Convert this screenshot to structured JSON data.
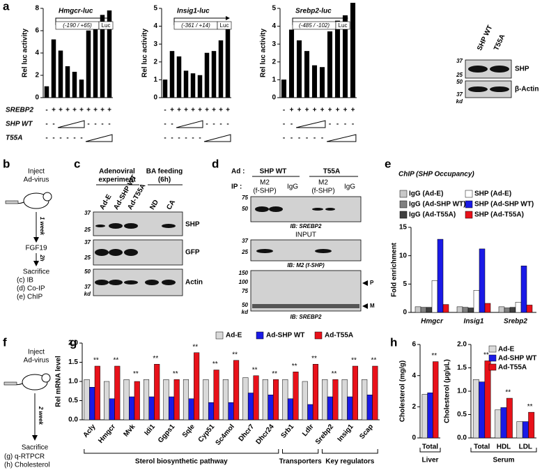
{
  "panel_labels": [
    "a",
    "b",
    "c",
    "d",
    "e",
    "f",
    "g",
    "h"
  ],
  "condition_labels": [
    "SREBP2",
    "SHP WT",
    "T55A"
  ],
  "chart_data": [
    {
      "type": "bar",
      "title": "Hmgcr-luc",
      "subtitle": "(-190 / +65)",
      "reporter": "Luc",
      "ylabel": "Rel luc activity",
      "color": "#000000",
      "values": [
        1,
        5.2,
        4.2,
        2.8,
        2.3,
        1.6,
        6.0,
        6.6,
        7.4,
        7.8
      ],
      "ylim": [
        0,
        8
      ],
      "yticks": [
        0,
        2,
        4,
        6,
        8
      ],
      "condition_signs": [
        [
          "-",
          "+",
          "+",
          "+",
          "+",
          "+",
          "+",
          "+",
          "+",
          "+"
        ],
        [
          "-",
          "-",
          null,
          null,
          null,
          null,
          "-",
          "-",
          "-",
          "-"
        ],
        [
          "-",
          "-",
          "-",
          "-",
          "-",
          "-",
          null,
          null,
          null,
          null
        ]
      ]
    },
    {
      "type": "bar",
      "title": "Insig1-luc",
      "subtitle": "(-361 / +14)",
      "reporter": "Luc",
      "ylabel": "Rel luc activity",
      "color": "#000000",
      "values": [
        1,
        2.6,
        2.3,
        1.5,
        1.35,
        1.25,
        2.5,
        2.6,
        3.2,
        4.1
      ],
      "ylim": [
        0,
        5
      ],
      "yticks": [
        0,
        1,
        2,
        3,
        4,
        5
      ],
      "condition_signs": [
        [
          "-",
          "+",
          "+",
          "+",
          "+",
          "+",
          "+",
          "+",
          "+",
          "+"
        ],
        [
          "-",
          "-",
          null,
          null,
          null,
          null,
          "-",
          "-",
          "-",
          "-"
        ],
        [
          "-",
          "-",
          "-",
          "-",
          "-",
          "-",
          null,
          null,
          null,
          null
        ]
      ]
    },
    {
      "type": "bar",
      "title": "Srebp2-luc",
      "subtitle": "(-485 / -102)",
      "reporter": "Luc",
      "ylabel": "Rel luc activity",
      "color": "#000000",
      "values": [
        1,
        3.8,
        3.2,
        2.6,
        1.8,
        1.7,
        3.7,
        4.3,
        4.6,
        5.3
      ],
      "ylim": [
        0,
        5
      ],
      "yticks": [
        0,
        1,
        2,
        3,
        4,
        5
      ],
      "condition_signs": [
        [
          "-",
          "+",
          "+",
          "+",
          "+",
          "+",
          "+",
          "+",
          "+",
          "+"
        ],
        [
          "-",
          "-",
          null,
          null,
          null,
          null,
          "-",
          "-",
          "-",
          "-"
        ],
        [
          "-",
          "-",
          "-",
          "-",
          "-",
          "-",
          null,
          null,
          null,
          null
        ]
      ]
    },
    {
      "type": "bar",
      "title": "ChIP (SHP Occupancy)",
      "ylabel": "Fold enrichment",
      "categories": [
        "Hmgcr",
        "Insig1",
        "Srebp2"
      ],
      "series": [
        {
          "name": "IgG (Ad-E)",
          "color": "#c8c8c8",
          "values": [
            1.0,
            1.0,
            1.0
          ]
        },
        {
          "name": "IgG (Ad-SHP WT)",
          "color": "#808080",
          "values": [
            0.9,
            0.9,
            0.8
          ]
        },
        {
          "name": "IgG (Ad-T55A)",
          "color": "#404040",
          "values": [
            0.9,
            0.8,
            0.9
          ]
        },
        {
          "name": "SHP (Ad-E)",
          "color": "#ffffff",
          "values": [
            5.6,
            3.9,
            1.8
          ]
        },
        {
          "name": "SHP (Ad-SHP WT)",
          "color": "#1a1ae6",
          "values": [
            12.9,
            11.2,
            8.2
          ]
        },
        {
          "name": "SHP (Ad-T55A)",
          "color": "#e8111a",
          "values": [
            1.4,
            1.6,
            1.3
          ]
        }
      ],
      "ylim": [
        0,
        15
      ],
      "yticks": [
        0,
        5,
        10,
        15
      ]
    },
    {
      "type": "bar",
      "ylabel": "Rel mRNA level",
      "categories": [
        "Acly",
        "Hmgcr",
        "Mvk",
        "Idi1",
        "Ggps1",
        "Sqle",
        "Cyp51",
        "Sc4mol",
        "Dhcr7",
        "Dhcr24",
        "Srb1",
        "Ldlr",
        "Srebp2",
        "Insig1",
        "Scap"
      ],
      "series": [
        {
          "name": "Ad-E",
          "color": "#d9d9d9",
          "values": [
            1.05,
            1.0,
            1.05,
            1.05,
            1.05,
            1.05,
            1.05,
            1.05,
            1.1,
            1.05,
            1.05,
            1.0,
            1.05,
            1.05,
            1.05
          ]
        },
        {
          "name": "Ad-SHP WT",
          "color": "#1a1ae6",
          "values": [
            0.85,
            0.55,
            0.6,
            0.6,
            0.6,
            0.55,
            0.45,
            0.45,
            0.7,
            0.65,
            0.55,
            0.4,
            0.6,
            0.6,
            0.65
          ]
        },
        {
          "name": "Ad-T55A",
          "color": "#e8111a",
          "values": [
            1.4,
            1.4,
            1.0,
            1.45,
            1.05,
            1.75,
            1.3,
            1.55,
            1.15,
            1.05,
            1.25,
            1.45,
            1.05,
            1.4,
            1.4
          ]
        }
      ],
      "sig_labels": [
        "**",
        "**",
        "**",
        "**",
        "**",
        "**",
        "**",
        "**",
        "**",
        "**",
        "**",
        "**",
        "**",
        "**",
        "**"
      ],
      "group_labels": [
        "Sterol biosynthetic pathway",
        "Transporters",
        "Key regulators"
      ],
      "ylim": [
        0,
        2
      ],
      "yticks": [
        {
          "value": 0,
          "label": "0.0"
        },
        {
          "value": 0.5,
          "label": "0.5"
        },
        {
          "value": 1,
          "label": "1.0"
        },
        {
          "value": 1.5,
          "label": "1.5"
        },
        {
          "value": 2,
          "label": "2.0"
        }
      ]
    },
    {
      "type": "bar",
      "ylabel": "Cholesterol (mg/g)",
      "categories": [
        "Total"
      ],
      "group_label": "Liver",
      "series": [
        {
          "color": "#d9d9d9",
          "values": [
            2.8
          ]
        },
        {
          "color": "#1a1ae6",
          "values": [
            2.9
          ]
        },
        {
          "color": "#e8111a",
          "values": [
            4.9
          ]
        }
      ],
      "sig_labels": [
        "**"
      ],
      "ylim": [
        0,
        6
      ],
      "yticks": [
        0,
        2,
        4,
        6
      ]
    },
    {
      "type": "bar",
      "ylabel": "Cholesterol (μg/μL)",
      "categories": [
        "Total",
        "HDL",
        "LDL"
      ],
      "group_label": "Serum",
      "series": [
        {
          "name": "Ad-E",
          "color": "#d9d9d9",
          "values": [
            1.25,
            0.6,
            0.35
          ]
        },
        {
          "name": "Ad-SHP WT",
          "color": "#1a1ae6",
          "values": [
            1.2,
            0.65,
            0.35
          ]
        },
        {
          "name": "Ad-T55A",
          "color": "#e8111a",
          "values": [
            1.65,
            0.85,
            0.55
          ]
        }
      ],
      "sig_labels": [
        "**",
        "**",
        "**"
      ],
      "ylim": [
        0,
        2
      ],
      "yticks": [
        {
          "value": 0,
          "label": "0.0"
        },
        {
          "value": 0.5,
          "label": "0.5"
        },
        {
          "value": 1,
          "label": "1.0"
        },
        {
          "value": 1.5,
          "label": "1.5"
        },
        {
          "value": 2,
          "label": "2.0"
        }
      ]
    }
  ],
  "blot_a": {
    "lanes": [
      "SHP WT",
      "T55A"
    ],
    "bands": [
      "SHP",
      "β-Actin"
    ],
    "markers": [
      "37",
      "25",
      "50",
      "37"
    ],
    "unit": "kd"
  },
  "panel_b": {
    "step1": [
      "Inject",
      "Ad-virus"
    ],
    "interval1": "1 week",
    "treatment": "FGF19",
    "interval2": "2h",
    "end": "Sacrifice",
    "assays": [
      "(c) IB",
      "(d) Co-IP",
      "(e) ChIP"
    ]
  },
  "panel_c": {
    "header1": [
      "Adenoviral",
      "experiment"
    ],
    "header2": [
      "BA feeding",
      "(6h)"
    ],
    "lanes": [
      "Ad-E",
      "Ad-SHP WT",
      "Ad-T55A",
      "ND",
      "CA"
    ],
    "bands": [
      "SHP",
      "GFP",
      "Actin"
    ],
    "markers": [
      "37",
      "25",
      "37",
      "25",
      "50",
      "37"
    ],
    "unit": "kd"
  },
  "panel_d": {
    "ad_label": "Ad :",
    "groups": [
      "SHP WT",
      "T55A"
    ],
    "ip_label": "IP :",
    "ip": [
      [
        "M2",
        "(f-SHP)"
      ],
      "IgG",
      [
        "M2",
        "(f-SHP)"
      ],
      "IgG"
    ],
    "blot1_markers": [
      "75",
      "50"
    ],
    "blot1_ib": "IB: SREBP2",
    "input": "INPUT",
    "blot2_markers": [
      "37",
      "25"
    ],
    "blot2_ib": "IB: M2 (f-SHP)",
    "blot3_markers": [
      "150",
      "100",
      "75",
      "50"
    ],
    "unit": "kd",
    "arrows": [
      "P",
      "M"
    ],
    "blot3_ib": "IB: SREBP2"
  },
  "panel_f": {
    "step1": [
      "Inject",
      "Ad-virus"
    ],
    "interval": "2 week",
    "end": "Sacrifice",
    "assays": [
      "(g) q-RTPCR",
      "(h) Cholesterol"
    ]
  }
}
